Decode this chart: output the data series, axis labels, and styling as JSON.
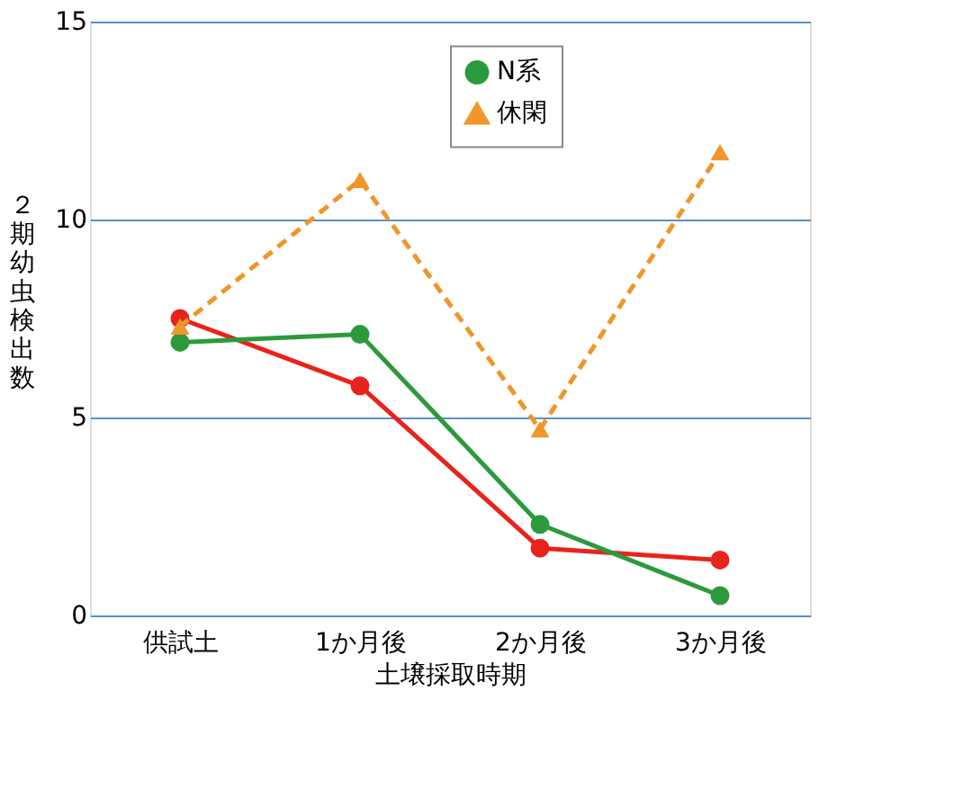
{
  "chart_data": {
    "type": "line",
    "xlabel": "土壌採取時期",
    "ylabel": "２期幼虫検出数",
    "categories": [
      "供試土",
      "1か月後",
      "2か月後",
      "3か月後"
    ],
    "ylim": [
      0,
      15
    ],
    "yticks": [
      0,
      5,
      10,
      15
    ],
    "grid": "y",
    "legend": "top right",
    "series": [
      {
        "color": "#e8231c",
        "marker": "circle",
        "line_style": "solid",
        "values": [
          7.5,
          5.8,
          1.7,
          1.4
        ]
      },
      {
        "name": "N系",
        "color": "#2c9a3c",
        "marker": "circle",
        "line_style": "solid",
        "values": [
          6.9,
          7.1,
          2.3,
          0.5
        ]
      },
      {
        "name": "休閑",
        "color": "#f0962a",
        "marker": "triangle",
        "line_style": "dashed",
        "values": [
          7.3,
          11.0,
          4.7,
          11.7
        ]
      }
    ]
  }
}
